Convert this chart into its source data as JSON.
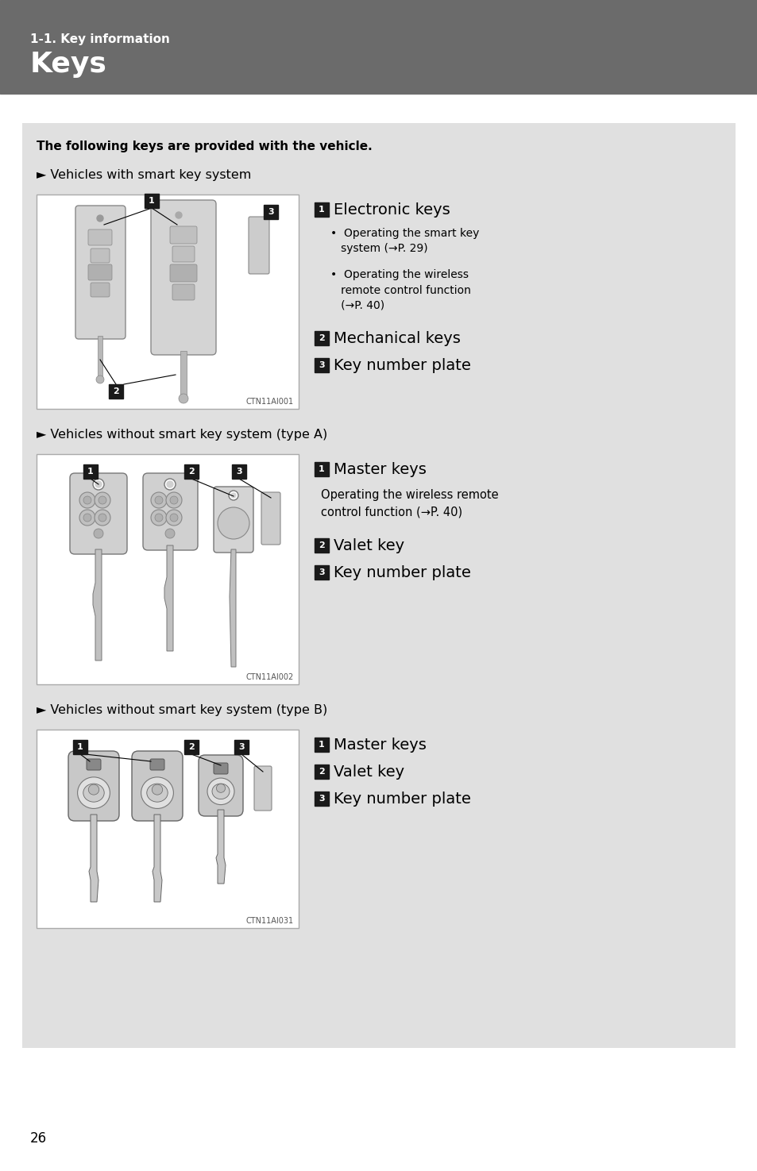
{
  "header_bg": "#6b6b6b",
  "header_subtitle": "1-1. Key information",
  "header_title": "Keys",
  "page_bg": "#ffffff",
  "content_bg": "#e0e0e0",
  "page_number": "26",
  "intro_bold": "The following keys are provided with the vehicle.",
  "section1_title": "► Vehicles with smart key system",
  "section1_img_code": "CTN11AI001",
  "section1_items_line1": "1 Electronic keys",
  "section1_bullet1": "•  Operating the smart key\n    system (→P. 29)",
  "section1_bullet2": "•  Operating the wireless\n    remote control function\n    (→P. 40)",
  "section1_item2": "2 Mechanical keys",
  "section1_item3": "3 Key number plate",
  "section2_title": "► Vehicles without smart key system (type A)",
  "section2_img_code": "CTN11AI002",
  "section2_item1": "1 Master keys",
  "section2_bullet1": "Operating the wireless remote\ncontrol function (→P. 40)",
  "section2_item2": "2 Valet key",
  "section2_item3": "3 Key number plate",
  "section3_title": "► Vehicles without smart key system (type B)",
  "section3_img_code": "CTN11AI031",
  "section3_item1": "1 Master keys",
  "section3_item2": "2 Valet key",
  "section3_item3": "3 Key number plate",
  "num_bg_dark": "#1a1a1a",
  "num_text_color": "#ffffff",
  "img_border": "#aaaaaa",
  "img_bg": "#ffffff"
}
